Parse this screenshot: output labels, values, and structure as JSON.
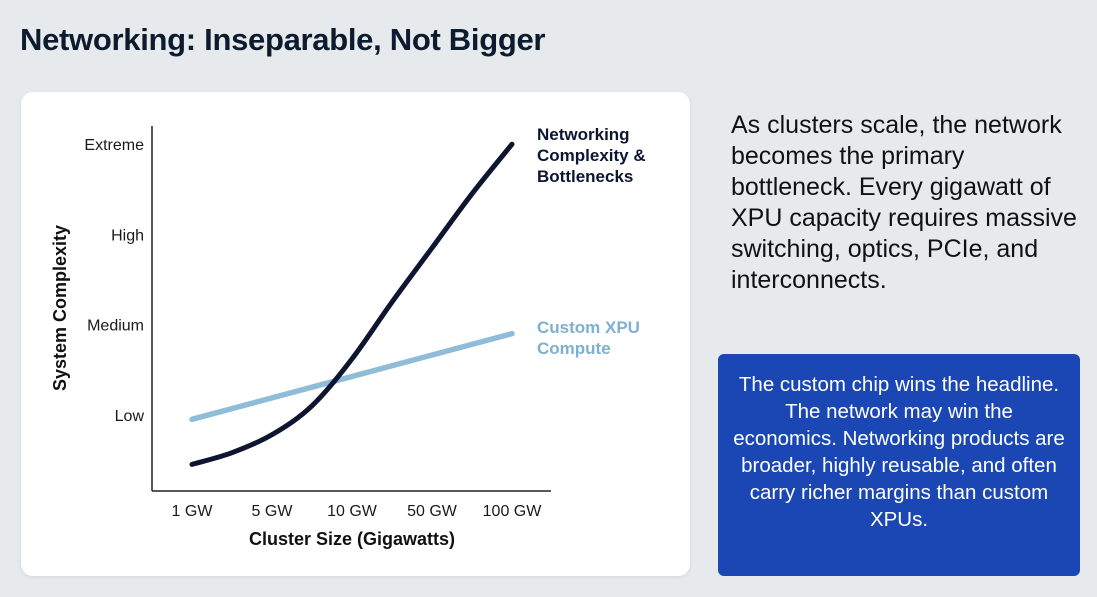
{
  "title": "Networking: Inseparable, Not Bigger",
  "side_text": "As clusters scale, the network becomes the primary bottleneck. Every gigawatt of XPU capacity requires massive switching, optics, PCIe, and interconnects.",
  "callout_text": "The custom chip wins the headline. The network may win the economics. Networking products are broader, highly reusable, and often carry richer margins than custom XPUs.",
  "colors": {
    "networking_line": "#0d1530",
    "compute_line": "#8fbcd6",
    "compute_label": "#7fb0cf",
    "callout_bg": "#1b47b4"
  },
  "chart_data": {
    "type": "line",
    "xlabel": "Cluster Size (Gigawatts)",
    "ylabel": "System Complexity",
    "categories": [
      "1 GW",
      "5 GW",
      "10 GW",
      "50 GW",
      "100 GW"
    ],
    "y_levels": [
      "Low",
      "Medium",
      "High",
      "Extreme"
    ],
    "series": [
      {
        "name": "Networking Complexity & Bottlenecks",
        "label_lines": [
          "Networking",
          "Complexity &",
          "Bottlenecks"
        ],
        "x": [
          0,
          0.5,
          1,
          1.5,
          2,
          2.5,
          3,
          3.5,
          4
        ],
        "values": [
          0.45,
          0.58,
          0.78,
          1.1,
          1.62,
          2.25,
          2.85,
          3.45,
          4.0
        ]
      },
      {
        "name": "Custom XPU Compute",
        "label_lines": [
          "Custom XPU",
          "Compute"
        ],
        "x": [
          0,
          4
        ],
        "values": [
          0.95,
          1.9
        ]
      }
    ],
    "grid": false,
    "legend": "inline labels at line ends"
  }
}
